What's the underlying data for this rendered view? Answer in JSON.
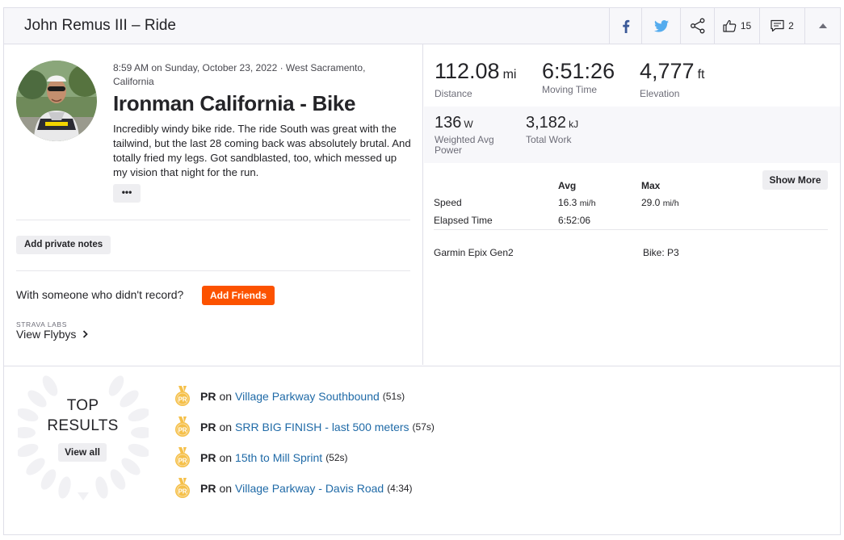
{
  "header": {
    "title": "John Remus III – Ride",
    "kudos_count": "15",
    "comments_count": "2",
    "icons": [
      "facebook-icon",
      "twitter-icon",
      "share-icon",
      "thumbs-up-icon",
      "comment-icon",
      "caret-up-icon"
    ]
  },
  "activity": {
    "meta": "8:59 AM on Sunday, October 23, 2022 · West Sacramento, California",
    "title": "Ironman California - Bike",
    "description": "Incredibly windy bike ride. The ride South was great with the tailwind, but the last 28 coming back was absolutely brutal. And totally fried my legs. Got sandblasted, too, which messed up my vision that night for the run.",
    "more_label": "•••",
    "private_notes_label": "Add private notes",
    "with_someone_text": "With someone who didn't record?",
    "add_friends_label": "Add Friends",
    "labs_label": "STRAVA LABS",
    "flyby_label": "View Flybys"
  },
  "stats": {
    "primary": [
      {
        "value": "112.08",
        "unit": "mi",
        "label": "Distance"
      },
      {
        "value": "6:51:26",
        "unit": "",
        "label": "Moving Time"
      },
      {
        "value": "4,777",
        "unit": "ft",
        "label": "Elevation"
      }
    ],
    "secondary": [
      {
        "value": "136",
        "unit": "W",
        "label": "Weighted Avg Power"
      },
      {
        "value": "3,182",
        "unit": "kJ",
        "label": "Total Work"
      }
    ],
    "table": {
      "avg_header": "Avg",
      "max_header": "Max",
      "rows": [
        {
          "label": "Speed",
          "avg": "16.3",
          "avg_unit": "mi/h",
          "max": "29.0",
          "max_unit": "mi/h"
        },
        {
          "label": "Elapsed Time",
          "avg": "6:52:06",
          "avg_unit": "",
          "max": "",
          "max_unit": ""
        }
      ]
    },
    "show_more_label": "Show More",
    "device": "Garmin Epix Gen2",
    "bike": "Bike: P3"
  },
  "top_results": {
    "title_line1": "TOP",
    "title_line2": "RESULTS",
    "view_all_label": "View all",
    "medal_text": "PR",
    "items": [
      {
        "badge": "PR",
        "on": "on",
        "segment": "Village Parkway Southbound",
        "time": "(51s)"
      },
      {
        "badge": "PR",
        "on": "on",
        "segment": "SRR BIG FINISH - last 500 meters",
        "time": "(57s)"
      },
      {
        "badge": "PR",
        "on": "on",
        "segment": "15th to Mill Sprint",
        "time": "(52s)"
      },
      {
        "badge": "PR",
        "on": "on",
        "segment": "Village Parkway - Davis Road",
        "time": "(4:34)"
      }
    ]
  },
  "colors": {
    "accent": "#fc5200",
    "link": "#1f6aa7",
    "medal": "#f5c04a",
    "facebook": "#3b5998",
    "twitter": "#55acee"
  }
}
